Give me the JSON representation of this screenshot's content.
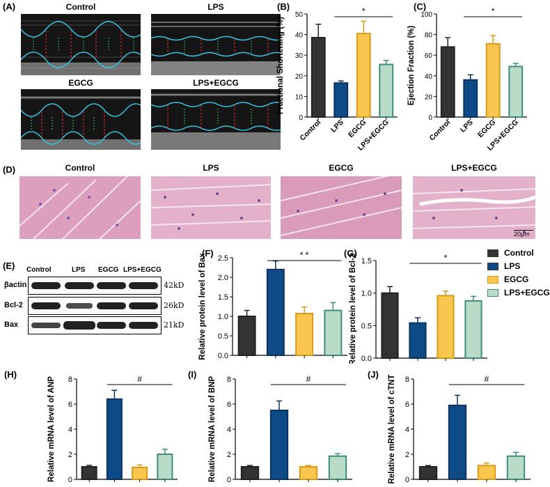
{
  "panels": {
    "A": {
      "label": "(A)",
      "titles": [
        "Control",
        "LPS",
        "EGCG",
        "LPS+EGCG"
      ]
    },
    "D": {
      "label": "(D)",
      "titles": [
        "Control",
        "LPS",
        "EGCG",
        "LPS+EGCG"
      ],
      "scale_bar": "20μm"
    },
    "E": {
      "label": "(E)",
      "columns": [
        "Control",
        "LPS",
        "EGCG",
        "LPS+EGCG"
      ],
      "rows": [
        {
          "name": "βactin",
          "kd": "42kD"
        },
        {
          "name": "Bcl-2",
          "kd": "26kD"
        },
        {
          "name": "Bax",
          "kd": "21kD"
        }
      ]
    }
  },
  "colors": {
    "Control": "#333333",
    "LPS": "#0e4a86",
    "EGCG": "#f9c74f",
    "LPS+EGCG": "#b9dcc8",
    "edge_EGCG": "#d99a17",
    "edge_LPSEGCG": "#3e8b7a"
  },
  "legend": [
    "Control",
    "LPS",
    "EGCG",
    "LPS+EGCG"
  ],
  "chart_data": [
    {
      "id": "B",
      "panel_label": "(B)",
      "type": "bar",
      "ylabel": "Fractional Shortening (%)",
      "categories": [
        "Control",
        "LPS",
        "EGCG",
        "LPS+EGCG"
      ],
      "values": [
        38.5,
        16.5,
        40.5,
        25.5
      ],
      "errors": [
        6.5,
        1.0,
        6.0,
        2.0
      ],
      "ylim": [
        0,
        50
      ],
      "yticks": [
        "0",
        "10",
        "20",
        "30",
        "40",
        "50"
      ],
      "sig": "*",
      "sig_span": [
        1,
        3
      ]
    },
    {
      "id": "C",
      "panel_label": "(C)",
      "type": "bar",
      "ylabel": "Ejection Fraction (%)",
      "categories": [
        "Control",
        "LPS",
        "EGCG",
        "LPS+EGCG"
      ],
      "values": [
        68,
        36,
        71,
        49
      ],
      "errors": [
        9,
        5,
        8,
        3
      ],
      "ylim": [
        0,
        100
      ],
      "yticks": [
        "0",
        "20",
        "40",
        "60",
        "80",
        "100"
      ],
      "sig": "*",
      "sig_span": [
        1,
        3
      ]
    },
    {
      "id": "F",
      "panel_label": "(F)",
      "type": "bar",
      "ylabel": "Relative protein level of Bax",
      "categories": [
        "Control",
        "LPS",
        "EGCG",
        "LPS+EGCG"
      ],
      "values": [
        1.0,
        2.2,
        1.07,
        1.15
      ],
      "errors": [
        0.15,
        0.22,
        0.17,
        0.2
      ],
      "ylim": [
        0,
        2.5
      ],
      "yticks": [
        "0.0",
        "0.5",
        "1.0",
        "1.5",
        "2.0",
        "2.5"
      ],
      "sig": "* *",
      "sig_span": [
        1,
        3
      ]
    },
    {
      "id": "G",
      "panel_label": "(G)",
      "type": "bar",
      "ylabel": "Relative protein level of Bcl-2",
      "categories": [
        "Control",
        "LPS",
        "EGCG",
        "LPS+EGCG"
      ],
      "values": [
        1.0,
        0.54,
        0.96,
        0.88
      ],
      "errors": [
        0.1,
        0.08,
        0.07,
        0.07
      ],
      "ylim": [
        0,
        1.5
      ],
      "yticks": [
        "0.0",
        "0.5",
        "1.0",
        "1.5"
      ],
      "sig": "*",
      "sig_span": [
        1,
        3
      ]
    },
    {
      "id": "H",
      "panel_label": "(H)",
      "type": "bar",
      "ylabel": "Relative mRNA level of ANP",
      "categories": [
        "Control",
        "LPS",
        "EGCG",
        "LPS+EGCG"
      ],
      "values": [
        1.0,
        6.4,
        0.95,
        2.0
      ],
      "errors": [
        0.12,
        0.7,
        0.2,
        0.4
      ],
      "ylim": [
        0,
        8
      ],
      "yticks": [
        "0",
        "2",
        "4",
        "6",
        "8"
      ],
      "sig": "#",
      "sig_span": [
        1,
        3
      ]
    },
    {
      "id": "I",
      "panel_label": "(I)",
      "type": "bar",
      "ylabel": "Relative mRNA level of BNP",
      "categories": [
        "Control",
        "LPS",
        "EGCG",
        "LPS+EGCG"
      ],
      "values": [
        1.0,
        5.5,
        1.0,
        1.85
      ],
      "errors": [
        0.1,
        0.75,
        0.1,
        0.2
      ],
      "ylim": [
        0,
        8
      ],
      "yticks": [
        "0",
        "2",
        "4",
        "6",
        "8"
      ],
      "sig": "#",
      "sig_span": [
        1,
        3
      ]
    },
    {
      "id": "J",
      "panel_label": "(J)",
      "type": "bar",
      "ylabel": "Relative mRNA level of cTNT",
      "categories": [
        "Control",
        "LPS",
        "EGCG",
        "LPS+EGCG"
      ],
      "values": [
        1.0,
        5.9,
        1.1,
        1.85
      ],
      "errors": [
        0.1,
        0.8,
        0.2,
        0.3
      ],
      "ylim": [
        0,
        8
      ],
      "yticks": [
        "0",
        "2",
        "4",
        "6",
        "8"
      ],
      "sig": "#",
      "sig_span": [
        1,
        3
      ]
    }
  ]
}
